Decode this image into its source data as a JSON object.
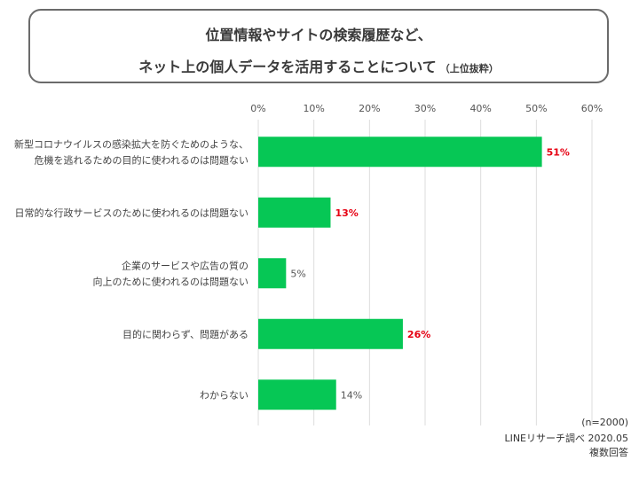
{
  "header": {
    "title_line1": "位置情報やサイトの検索履歴など、",
    "title_line2": "ネット上の個人データを活用することについて",
    "title_note": "（上位抜粋）"
  },
  "footer": {
    "sample": "(n=2000)",
    "source": "LINEリサーチ調べ 2020.05",
    "note": "複数回答"
  },
  "colors": {
    "bar": "#06c755",
    "highlight_label": "#e60012",
    "normal_label": "#555555",
    "grid": "#dddddd"
  },
  "chart_data": {
    "type": "bar",
    "orientation": "horizontal",
    "categories": [
      [
        "新型コロナウイルスの感染拡大を防ぐためのような、",
        "危機を逃れるための目的に使われるのは問題ない"
      ],
      [
        "日常的な行政サービスのために使われるのは問題ない"
      ],
      [
        "企業のサービスや広告の質の",
        "向上のために使われるのは問題ない"
      ],
      [
        "目的に関わらず、問題がある"
      ],
      [
        "わからない"
      ]
    ],
    "values": [
      51,
      13,
      5,
      26,
      14
    ],
    "value_labels": [
      "51%",
      "13%",
      "5%",
      "26%",
      "14%"
    ],
    "highlighted": [
      true,
      true,
      false,
      true,
      false
    ],
    "xlim": [
      0,
      60
    ],
    "xticks": [
      0,
      10,
      20,
      30,
      40,
      50,
      60
    ],
    "xtick_labels": [
      "0%",
      "10%",
      "20%",
      "30%",
      "40%",
      "50%",
      "60%"
    ],
    "grid": true
  }
}
